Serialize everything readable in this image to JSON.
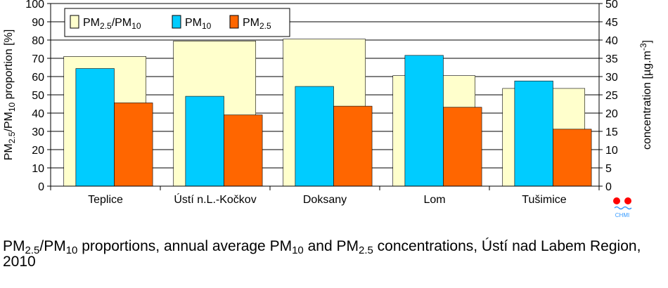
{
  "chart_data": {
    "type": "bar",
    "categories": [
      "Teplice",
      "Ústí n.L.-Kočkov",
      "Doksany",
      "Lom",
      "Tušimice"
    ],
    "series": [
      {
        "name": "PM2.5/PM10",
        "axis": "left",
        "values": [
          71,
          79.5,
          80.5,
          60.5,
          53.5
        ],
        "color": "#FFFFCC"
      },
      {
        "name": "PM10",
        "axis": "right",
        "values": [
          32.2,
          24.6,
          27.3,
          35.8,
          28.8
        ],
        "color": "#00CCFF"
      },
      {
        "name": "PM2.5",
        "axis": "right",
        "values": [
          22.8,
          19.5,
          21.9,
          21.6,
          15.6
        ],
        "color": "#FF6600"
      }
    ],
    "ylim_left": [
      0,
      100
    ],
    "yticks_left": [
      "0",
      "10",
      "20",
      "30",
      "40",
      "50",
      "60",
      "70",
      "80",
      "90",
      "100"
    ],
    "ylim_right": [
      0,
      50
    ],
    "yticks_right": [
      "0",
      "5",
      "10",
      "15",
      "20",
      "25",
      "30",
      "35",
      "40",
      "45",
      "50"
    ],
    "ylabel_left": {
      "main": "PM",
      "sub1": "2.5",
      "mid": "/PM",
      "sub2": "10",
      "end": " proportion [%]"
    },
    "ylabel_right": {
      "main": "concentration [µg.m",
      "sup": "-3",
      "end": "]"
    },
    "grid": true,
    "legend": {
      "position": "top-left",
      "entries": [
        {
          "main": "PM",
          "sub1": "2.5",
          "mid": "/PM",
          "sub2": "10"
        },
        {
          "main": "PM",
          "sub1": "10"
        },
        {
          "main": "PM",
          "sub1": "2.5"
        }
      ]
    }
  },
  "logo": {
    "text": "CHMI",
    "color": "#FF0000",
    "accent": "#3399FF"
  },
  "caption": {
    "p1": "PM",
    "s1": "2.5",
    "p2": "/PM",
    "s2": "10",
    "p3": " proportions, annual average PM",
    "s3": "10",
    "p4": " and PM",
    "s4": "2.5",
    "p5": " concentrations, Ústí nad Labem Region, 2010"
  }
}
